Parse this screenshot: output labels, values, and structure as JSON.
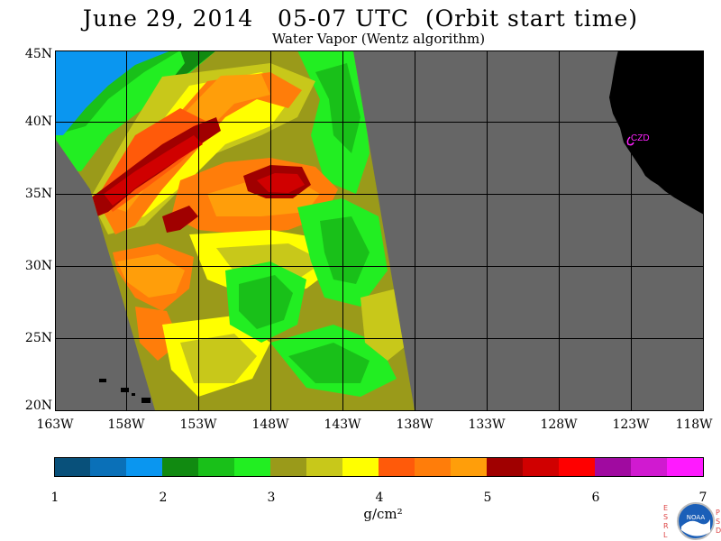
{
  "header": {
    "title": "June 29, 2014   05-07 UTC  (Orbit start time)",
    "subtitle": "Water Vapor (Wentz algorithm)"
  },
  "map": {
    "lat_labels": [
      "45N",
      "40N",
      "35N",
      "30N",
      "25N",
      "20N"
    ],
    "lon_labels": [
      "163W",
      "158W",
      "153W",
      "148W",
      "143W",
      "138W",
      "133W",
      "128W",
      "123W",
      "118W"
    ],
    "station_label": "CZD",
    "colors": {
      "no_data": "#666666",
      "land": "#000000",
      "station": "#ff22ff"
    }
  },
  "colorbar": {
    "ticks": [
      "1",
      "2",
      "3",
      "4",
      "5",
      "6",
      "7"
    ],
    "unit": "g/cm²",
    "colors": [
      "#08507a",
      "#0a70b8",
      "#0a96f0",
      "#118a11",
      "#19c019",
      "#22ee22",
      "#9a9a1a",
      "#c8c81a",
      "#ffff00",
      "#ff5a0a",
      "#ff7d0a",
      "#ff9e0a",
      "#a00000",
      "#d00000",
      "#ff0000",
      "#a00aa0",
      "#d01ad0",
      "#ff1aff"
    ]
  },
  "logo": {
    "left_letters": "ESRL",
    "right_letters": "PSD",
    "badge_text": "NOAA"
  }
}
